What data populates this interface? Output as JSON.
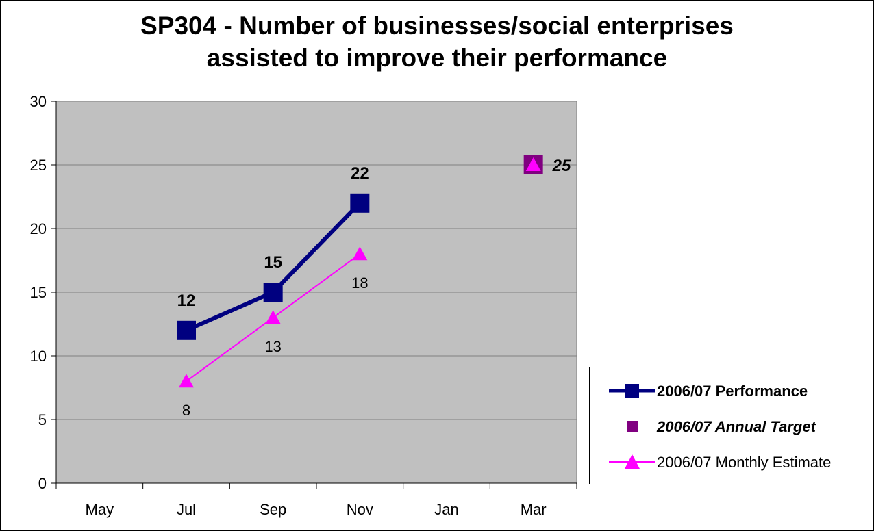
{
  "chart_data": {
    "type": "line",
    "title_lines": [
      "SP304 - Number of businesses/social enterprises",
      "assisted to improve their performance"
    ],
    "categories": [
      "May",
      "Jul",
      "Sep",
      "Nov",
      "Jan",
      "Mar"
    ],
    "ylim": [
      0,
      30
    ],
    "yticks": [
      "0",
      "5",
      "10",
      "15",
      "20",
      "25",
      "30"
    ],
    "grid": true,
    "legend_position": "right",
    "series": [
      {
        "name": "2006/07 Performance",
        "marker": "square",
        "color": "#000080",
        "points": [
          {
            "category": "Jul",
            "value": 12,
            "label": "12"
          },
          {
            "category": "Sep",
            "value": 15,
            "label": "15"
          },
          {
            "category": "Nov",
            "value": 22,
            "label": "22"
          }
        ]
      },
      {
        "name": "2006/07 Annual Target",
        "marker": "square",
        "color": "#800080",
        "points": [
          {
            "category": "Mar",
            "value": 25,
            "label": "25"
          }
        ]
      },
      {
        "name": "2006/07 Monthly Estimate",
        "marker": "triangle",
        "color": "#ff00ff",
        "points": [
          {
            "category": "Jul",
            "value": 8,
            "label": "8"
          },
          {
            "category": "Sep",
            "value": 13,
            "label": "13"
          },
          {
            "category": "Nov",
            "value": 18,
            "label": "18"
          },
          {
            "category": "Mar",
            "value": 25
          }
        ]
      }
    ],
    "colors": {
      "plot_background": "#c0c0c0",
      "gridline": "#808080",
      "axis": "#000000"
    }
  }
}
